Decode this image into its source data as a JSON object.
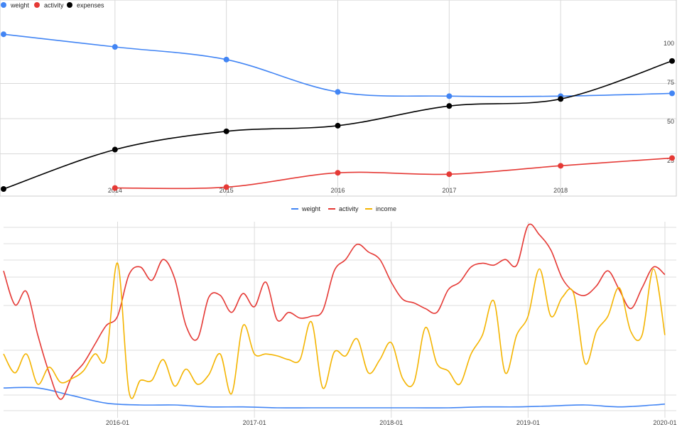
{
  "chart_data": [
    {
      "type": "line",
      "x": [
        2013,
        2014,
        2015,
        2016,
        2017,
        2018,
        2019
      ],
      "x_tick_labels": [
        "2014",
        "2015",
        "2016",
        "2017",
        "2018"
      ],
      "y_tick_labels": [
        "25",
        "50",
        "75",
        "100"
      ],
      "ylim": [
        0,
        112
      ],
      "grid": true,
      "legend_position": "top-left",
      "series": [
        {
          "name": "weight",
          "color": "#4285f4",
          "values": [
            110,
            101,
            92,
            69,
            66,
            66,
            68
          ]
        },
        {
          "name": "activity",
          "color": "#e53935",
          "values": [
            null,
            0.7,
            1.3,
            11.5,
            10.5,
            16.5,
            22
          ]
        },
        {
          "name": "expenses",
          "color": "#000000",
          "values": [
            0,
            28,
            41,
            45,
            59,
            64,
            91
          ]
        }
      ]
    },
    {
      "type": "line",
      "x_tick_labels": [
        "2016-01",
        "2017-01",
        "2018-01",
        "2019-01",
        "2020-01"
      ],
      "x_range": [
        "2015-03",
        "2020-02"
      ],
      "ylim": [
        0,
        100
      ],
      "grid": true,
      "legend_position": "top",
      "series": [
        {
          "name": "weight",
          "color": "#4285f4",
          "x": [
            "2015-03",
            "2015-06",
            "2015-09",
            "2015-12",
            "2016-03",
            "2016-06",
            "2016-09",
            "2016-12",
            "2017-03",
            "2017-06",
            "2017-09",
            "2017-12",
            "2018-03",
            "2018-06",
            "2018-09",
            "2018-12",
            "2019-03",
            "2019-06",
            "2019-09",
            "2019-12",
            "2020-01"
          ],
          "values": [
            12,
            12,
            8,
            4,
            3,
            3,
            2,
            2,
            1.5,
            1.5,
            1.5,
            1.5,
            1.5,
            1.5,
            2,
            2,
            2.5,
            3,
            2,
            3,
            3.5
          ]
        },
        {
          "name": "activity",
          "color": "#e53935",
          "x": [
            "2015-03",
            "2015-04",
            "2015-05",
            "2015-06",
            "2015-07",
            "2015-08",
            "2015-09",
            "2015-10",
            "2015-11",
            "2015-12",
            "2016-01",
            "2016-02",
            "2016-03",
            "2016-04",
            "2016-05",
            "2016-06",
            "2016-07",
            "2016-08",
            "2016-09",
            "2016-10",
            "2016-11",
            "2016-12",
            "2017-01",
            "2017-02",
            "2017-03",
            "2017-04",
            "2017-05",
            "2017-06",
            "2017-07",
            "2017-08",
            "2017-09",
            "2017-10",
            "2017-11",
            "2017-12",
            "2018-01",
            "2018-02",
            "2018-03",
            "2018-04",
            "2018-05",
            "2018-06",
            "2018-07",
            "2018-08",
            "2018-09",
            "2018-10",
            "2018-11",
            "2018-12",
            "2019-01",
            "2019-02",
            "2019-03",
            "2019-04",
            "2019-05",
            "2019-06",
            "2019-07",
            "2019-08",
            "2019-09",
            "2019-10",
            "2019-11",
            "2019-12",
            "2020-01"
          ],
          "values": [
            74,
            56,
            63,
            40,
            20,
            6,
            18,
            25,
            35,
            45,
            50,
            72,
            76,
            69,
            80,
            70,
            45,
            38,
            60,
            61,
            52,
            62,
            55,
            68,
            48,
            52,
            49,
            50,
            53,
            74,
            80,
            88,
            84,
            80,
            68,
            59,
            57,
            54,
            52,
            64,
            68,
            76,
            78,
            77,
            80,
            77,
            98,
            93,
            85,
            70,
            63,
            61,
            66,
            74,
            64,
            54,
            65,
            76,
            72
          ]
        },
        {
          "name": "income",
          "color": "#f4b400",
          "x": [
            "2015-03",
            "2015-04",
            "2015-05",
            "2015-06",
            "2015-07",
            "2015-08",
            "2015-09",
            "2015-10",
            "2015-11",
            "2015-12",
            "2016-01",
            "2016-02",
            "2016-03",
            "2016-04",
            "2016-05",
            "2016-06",
            "2016-07",
            "2016-08",
            "2016-09",
            "2016-10",
            "2016-11",
            "2016-12",
            "2017-01",
            "2017-02",
            "2017-03",
            "2017-04",
            "2017-05",
            "2017-06",
            "2017-07",
            "2017-08",
            "2017-09",
            "2017-10",
            "2017-11",
            "2017-12",
            "2018-01",
            "2018-02",
            "2018-03",
            "2018-04",
            "2018-05",
            "2018-06",
            "2018-07",
            "2018-08",
            "2018-09",
            "2018-10",
            "2018-11",
            "2018-12",
            "2019-01",
            "2019-02",
            "2019-03",
            "2019-04",
            "2019-05",
            "2019-06",
            "2019-07",
            "2019-08",
            "2019-09",
            "2019-10",
            "2019-11",
            "2019-12",
            "2020-01"
          ],
          "values": [
            30,
            20,
            30,
            14,
            23,
            15,
            17,
            21,
            30,
            28,
            78,
            10,
            16,
            16,
            27,
            13,
            22,
            14,
            19,
            30,
            9,
            45,
            30,
            30,
            29,
            27,
            27,
            47,
            12,
            31,
            29,
            38,
            20,
            27,
            36,
            17,
            15,
            44,
            25,
            21,
            14,
            30,
            40,
            58,
            20,
            40,
            50,
            75,
            50,
            60,
            62,
            25,
            42,
            50,
            65,
            42,
            40,
            75,
            40
          ]
        }
      ]
    }
  ]
}
